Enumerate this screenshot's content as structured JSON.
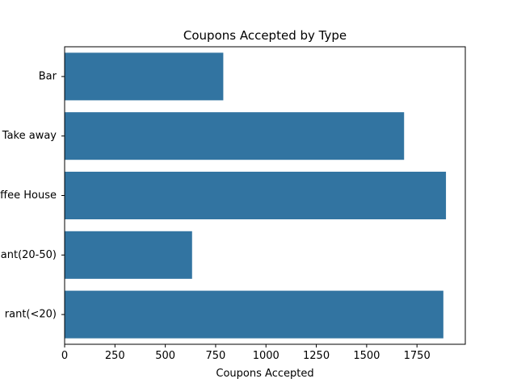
{
  "chart_data": {
    "type": "bar",
    "orientation": "horizontal",
    "title": "Coupons Accepted by Type",
    "xlabel": "Coupons Accepted",
    "ylabel": "",
    "categories": [
      "Bar",
      "Take away",
      "ffee House",
      "ant(20-50)",
      "rant(<20)"
    ],
    "values": [
      788,
      1686,
      1894,
      633,
      1881
    ],
    "xlim": [
      0,
      1990
    ],
    "xticks": [
      0,
      250,
      500,
      750,
      1000,
      1250,
      1500,
      1750
    ],
    "xtick_labels": [
      "0",
      "250",
      "500",
      "750",
      "1000",
      "1250",
      "1500",
      "1750"
    ],
    "bar_color": "#3274a1",
    "grid": false,
    "legend": "none"
  }
}
